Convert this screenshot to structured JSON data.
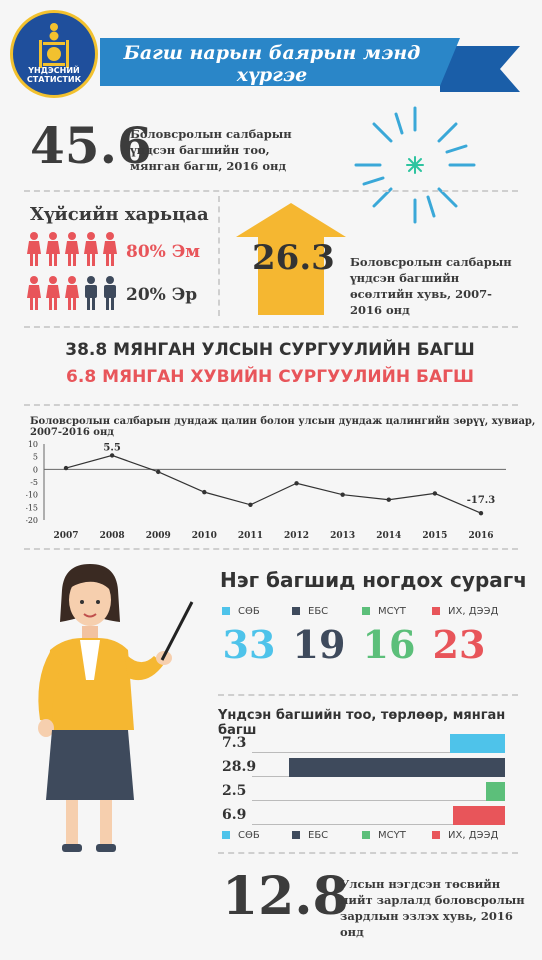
{
  "header": {
    "logo_text": "ҮНДЭСНИЙ СТАТИСТИК",
    "title": "Багш нарын баярын мэнд хүргэе"
  },
  "stat_teachers": {
    "value": "45.6",
    "text": "Боловсролын салбарын үндсэн багшийн тоо, мянган багш, 2016 онд"
  },
  "gender": {
    "title": "Хүйсийн харьцаа",
    "female_label": "80% Эм",
    "male_label": "20% Эр",
    "female_share": 0.8,
    "male_share": 0.2
  },
  "stat_growth": {
    "value": "26.3",
    "text": "Боловсролын салбарын үндсэн багшийн өсөлтийн хувь, 2007-2016 онд"
  },
  "headline": {
    "public": "38.8 МЯНГАН УЛСЫН СУРГУУЛИЙН БАГШ",
    "private": "6.8 МЯНГАН ХУВИЙН СУРГУУЛИЙН БАГШ"
  },
  "wage_chart": {
    "title": "Боловсролын салбарын дундаж цалин болон улсын дундаж цалингийн зөрүү, хувиар, 2007-2016 онд",
    "y_ticks": [
      "10",
      "5",
      "0",
      "-5",
      "-10",
      "-15",
      "-20"
    ],
    "label_2008": "5.5",
    "label_2016": "-17.3"
  },
  "chart_data": [
    {
      "type": "line",
      "title": "Боловсролын салбарын дундаж цалин болон улсын дундаж цалингийн зөрүү, хувиар, 2007-2016 онд",
      "x": [
        "2007",
        "2008",
        "2009",
        "2010",
        "2011",
        "2012",
        "2013",
        "2014",
        "2015",
        "2016"
      ],
      "values": [
        0.5,
        5.5,
        -1,
        -9,
        -14,
        -5.5,
        -10,
        -12,
        -9.5,
        -17.3
      ],
      "ylim": [
        -20,
        10
      ],
      "y_ticks": [
        10,
        5,
        0,
        -5,
        -10,
        -15,
        -20
      ],
      "series_color": "#333333",
      "data_labels": {
        "2008": "5.5",
        "2016": "-17.3"
      }
    },
    {
      "type": "bar",
      "title": "Нэг багшид ногдох сурагч",
      "categories": [
        "СӨБ",
        "ЕБС",
        "МСҮТ",
        "ИХ, ДЭЭД"
      ],
      "values": [
        33,
        19,
        16,
        23
      ]
    },
    {
      "type": "bar",
      "title": "Үндсэн багшийн тоо, төрлөөр, мянган багш",
      "categories": [
        "СӨБ",
        "ЕБС",
        "МСҮТ",
        "ИХ, ДЭЭД"
      ],
      "values": [
        7.3,
        28.9,
        2.5,
        6.9
      ],
      "colors": [
        "#4ec3ea",
        "#3e4a5c",
        "#5cbf7a",
        "#e8555a"
      ]
    }
  ],
  "students_per_teacher": {
    "title": "Нэг багшид ногдох сурагч",
    "items": [
      {
        "label": "СӨБ",
        "value": "33",
        "color": "#4ec3ea"
      },
      {
        "label": "ЕБС",
        "value": "19",
        "color": "#3e4a5c"
      },
      {
        "label": "МСҮТ",
        "value": "16",
        "color": "#5cbf7a"
      },
      {
        "label": "ИХ, ДЭЭД",
        "value": "23",
        "color": "#e8555a"
      }
    ]
  },
  "teachers_by_type": {
    "title": "Үндсэн багшийн тоо, төрлөөр, мянган багш",
    "labels": [
      "7.3",
      "28.9",
      "2.5",
      "6.9"
    ]
  },
  "spending": {
    "value": "12.8",
    "text": "Улсын нэгдсэн төсвийн нийт зарлалд боловсролын зардлын эзлэх хувь, 2016 онд"
  }
}
